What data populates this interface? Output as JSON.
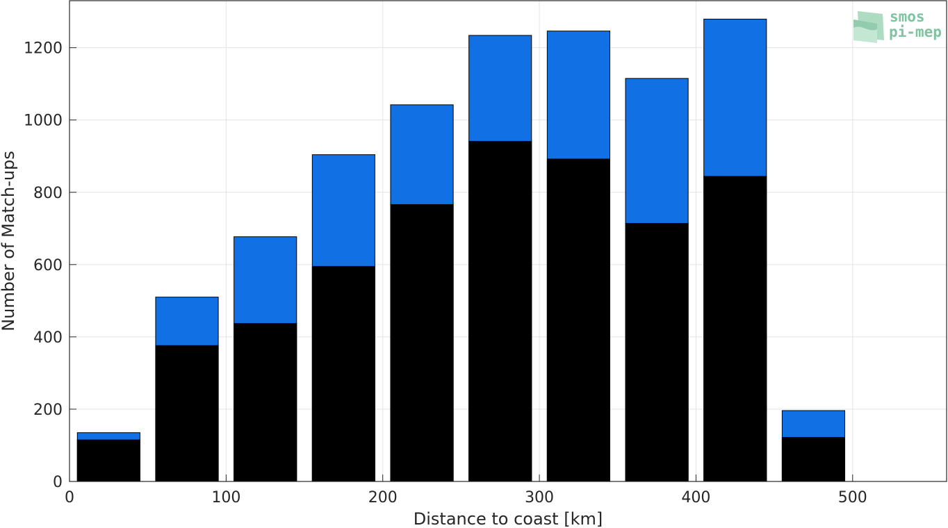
{
  "chart_data": {
    "type": "bar",
    "stacking": "overlay",
    "xlabel": "Distance to coast [km]",
    "ylabel": "Number of Match-ups",
    "xlim": [
      0,
      560
    ],
    "ylim": [
      0,
      1330
    ],
    "x_ticks": [
      0,
      100,
      200,
      300,
      400,
      500
    ],
    "y_ticks": [
      0,
      200,
      400,
      600,
      800,
      1000,
      1200
    ],
    "grid": true,
    "bin_width": 40,
    "x": [
      25,
      75,
      125,
      175,
      225,
      275,
      325,
      375,
      425,
      475
    ],
    "series": [
      {
        "color": "#1170e4",
        "values": [
          135,
          510,
          677,
          904,
          1042,
          1234,
          1246,
          1115,
          1279,
          196
        ]
      },
      {
        "color": "#000000",
        "values": [
          115,
          376,
          437,
          595,
          766,
          941,
          892,
          714,
          844,
          122
        ]
      }
    ]
  },
  "logo": {
    "line1": "smos",
    "line2": "pi-mep",
    "color": "#7fc3a0"
  }
}
